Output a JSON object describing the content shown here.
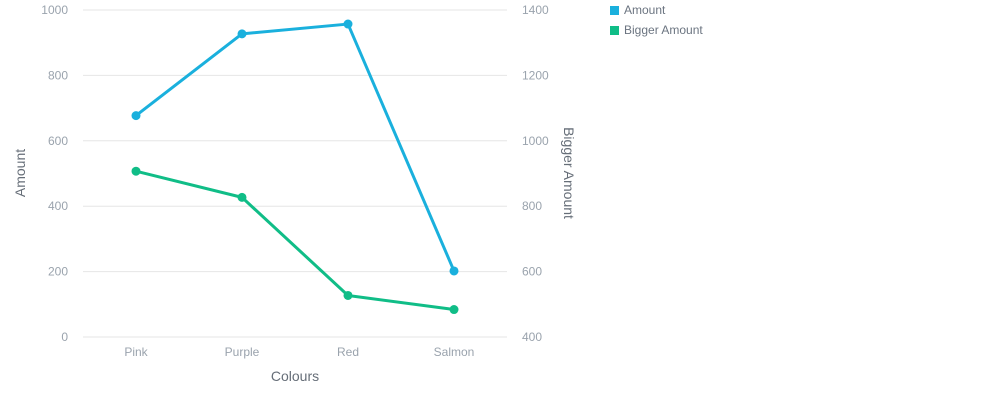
{
  "chart_data": {
    "type": "line",
    "categories": [
      "Pink",
      "Purple",
      "Red",
      "Salmon"
    ],
    "xlabel": "Colours",
    "y_left": {
      "label": "Amount",
      "range": [
        0,
        1000
      ],
      "ticks": [
        "0",
        "200",
        "400",
        "600",
        "800",
        "1000"
      ]
    },
    "y_right": {
      "label": "Bigger Amount",
      "range": [
        400,
        1400
      ],
      "ticks": [
        "400",
        "600",
        "800",
        "1000",
        "1200",
        "1400"
      ]
    },
    "series": [
      {
        "name": "Amount",
        "axis": "left",
        "color": "#1ab0dd",
        "values": [
          677,
          927,
          957,
          202
        ]
      },
      {
        "name": "Bigger Amount",
        "axis": "right",
        "color": "#10bd87",
        "values": [
          907,
          827,
          527,
          484
        ]
      }
    ],
    "grid": true,
    "legend_position": "top-right"
  }
}
